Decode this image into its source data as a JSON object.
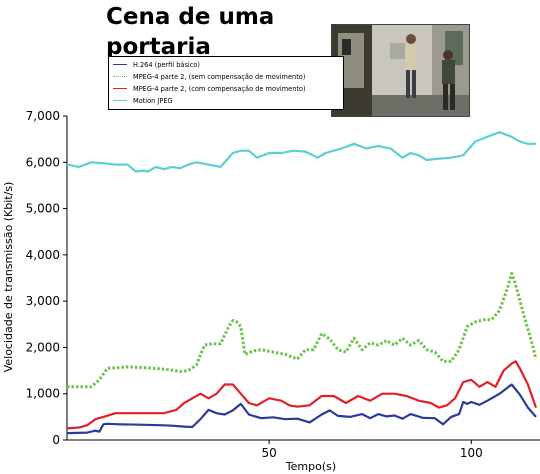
{
  "title": "Cena de uma portaria",
  "chart_data": {
    "type": "line",
    "title": "Cena de uma portaria",
    "xlabel": "Tempo(s)",
    "ylabel": "Velocidade de transmissão (Kbit/s)",
    "xlim": [
      0,
      117
    ],
    "ylim": [
      0,
      7000
    ],
    "x_ticks": [
      50,
      100
    ],
    "x_tick_labels": [
      "50",
      "100"
    ],
    "y_ticks": [
      0,
      1000,
      2000,
      3000,
      4000,
      5000,
      6000,
      7000
    ],
    "y_tick_labels": [
      "0",
      "1,000",
      "2,000",
      "3,000",
      "4,000",
      "5,000",
      "6,000",
      "7,000"
    ],
    "grid": false,
    "legend_position": "top-left",
    "series": [
      {
        "name": "H.264 (perfil básico)",
        "color": "#2b3a9b",
        "style": "solid",
        "x": [
          0,
          5,
          7,
          8,
          9,
          10,
          13,
          18,
          23,
          26,
          29,
          31,
          33,
          35,
          37,
          39,
          41,
          43,
          45,
          48,
          51,
          54,
          57,
          60,
          63,
          65,
          67,
          70,
          73,
          75,
          77,
          79,
          81,
          83,
          85,
          88,
          91,
          93,
          95,
          97,
          98,
          99,
          100,
          102,
          104,
          107,
          110,
          112,
          114,
          116
        ],
        "values": [
          150,
          160,
          200,
          180,
          340,
          350,
          340,
          330,
          320,
          310,
          290,
          280,
          450,
          650,
          580,
          550,
          640,
          780,
          550,
          470,
          490,
          450,
          460,
          380,
          550,
          640,
          520,
          500,
          560,
          470,
          560,
          510,
          530,
          460,
          560,
          480,
          470,
          340,
          500,
          560,
          820,
          780,
          820,
          760,
          850,
          1000,
          1200,
          980,
          700,
          500
        ]
      },
      {
        "name": "MPEG-4 parte 2, (sem compensação de movimento)",
        "color": "#6cc24a",
        "style": "dotted",
        "x": [
          0,
          4,
          6,
          8,
          10,
          12,
          15,
          20,
          25,
          28,
          30,
          32,
          34,
          36,
          38,
          40,
          41,
          42,
          43,
          44,
          46,
          48,
          51,
          54,
          57,
          59,
          61,
          63,
          65,
          67,
          69,
          71,
          73,
          75,
          77,
          79,
          81,
          83,
          85,
          87,
          89,
          91,
          93,
          95,
          97,
          99,
          101,
          103,
          105,
          107,
          109,
          110,
          111,
          113,
          115,
          116
        ],
        "values": [
          1150,
          1150,
          1150,
          1300,
          1550,
          1560,
          1580,
          1560,
          1520,
          1480,
          1500,
          1620,
          2050,
          2080,
          2080,
          2450,
          2580,
          2550,
          2450,
          1850,
          1920,
          1950,
          1900,
          1850,
          1750,
          1950,
          1950,
          2300,
          2180,
          1950,
          1900,
          2200,
          1950,
          2100,
          2050,
          2150,
          2050,
          2200,
          2050,
          2150,
          1950,
          1900,
          1700,
          1700,
          1950,
          2450,
          2550,
          2600,
          2600,
          2800,
          3300,
          3600,
          3350,
          2700,
          2100,
          1750
        ]
      },
      {
        "name": "MPEG-4 parte 2, (com compensação de movimento)",
        "color": "#e0202a",
        "style": "solid",
        "x": [
          0,
          3,
          5,
          7,
          9,
          12,
          15,
          18,
          21,
          24,
          27,
          29,
          31,
          33,
          35,
          37,
          39,
          41,
          43,
          45,
          47,
          50,
          53,
          55,
          57,
          60,
          63,
          66,
          69,
          72,
          75,
          78,
          81,
          84,
          87,
          90,
          92,
          94,
          96,
          98,
          100,
          102,
          104,
          106,
          108,
          110,
          111,
          112,
          114,
          116
        ],
        "values": [
          250,
          270,
          320,
          450,
          500,
          580,
          580,
          580,
          580,
          580,
          650,
          800,
          900,
          1000,
          900,
          1000,
          1200,
          1200,
          1000,
          800,
          750,
          900,
          850,
          750,
          720,
          750,
          950,
          950,
          800,
          950,
          850,
          1000,
          1000,
          950,
          850,
          800,
          700,
          750,
          900,
          1250,
          1300,
          1150,
          1250,
          1150,
          1500,
          1650,
          1700,
          1550,
          1200,
          700
        ]
      },
      {
        "name": "Motion JPEG",
        "color": "#5ccfd6",
        "style": "solid",
        "x": [
          0,
          3,
          6,
          9,
          12,
          15,
          17,
          19,
          20,
          22,
          24,
          26,
          28,
          30,
          32,
          35,
          38,
          41,
          43,
          45,
          47,
          50,
          53,
          56,
          59,
          62,
          64,
          66,
          68,
          71,
          74,
          77,
          80,
          83,
          85,
          87,
          89,
          92,
          95,
          98,
          101,
          104,
          107,
          110,
          112,
          114,
          116
        ],
        "values": [
          5950,
          5900,
          6000,
          5980,
          5950,
          5950,
          5800,
          5820,
          5800,
          5900,
          5850,
          5900,
          5870,
          5950,
          6000,
          5950,
          5900,
          6200,
          6250,
          6250,
          6100,
          6200,
          6200,
          6250,
          6230,
          6100,
          6200,
          6250,
          6300,
          6400,
          6300,
          6350,
          6300,
          6100,
          6200,
          6150,
          6050,
          6080,
          6100,
          6150,
          6450,
          6550,
          6650,
          6550,
          6450,
          6400,
          6400
        ]
      }
    ]
  }
}
